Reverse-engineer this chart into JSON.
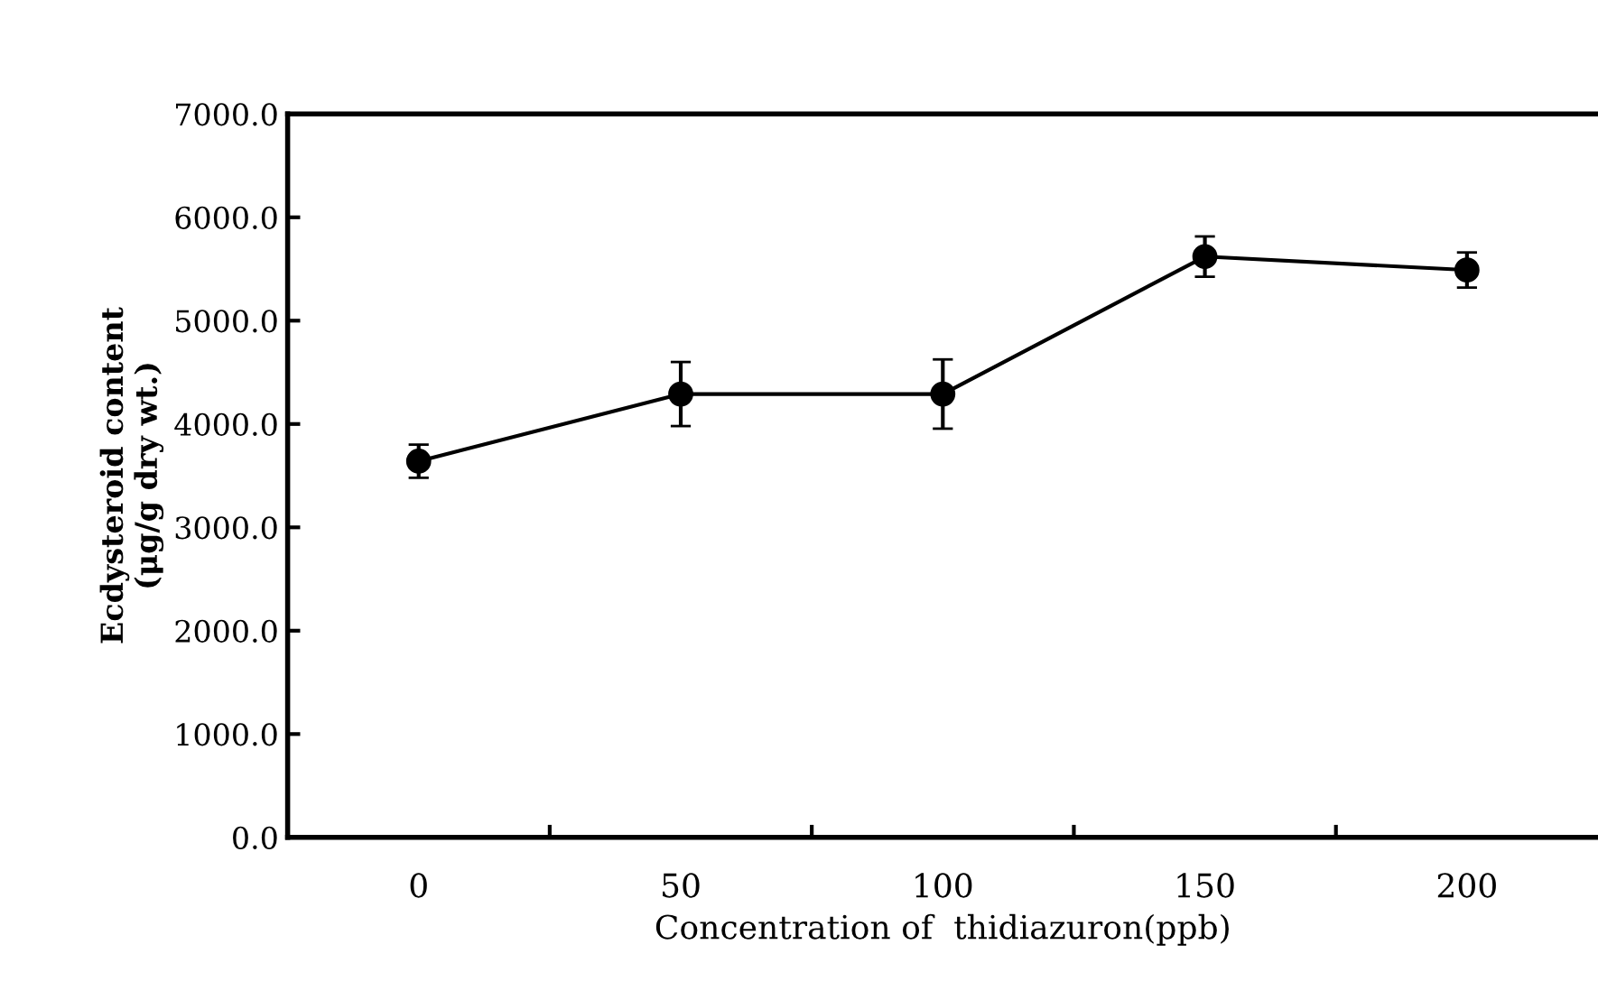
{
  "chart_data": {
    "type": "line",
    "xlabel": "Concentration of  thidiazuron(ppb)",
    "ylabel": "Ecdysteroid content\n(μg/g dry wt.)",
    "categories": [
      "0",
      "50",
      "100",
      "150",
      "200"
    ],
    "series": [
      {
        "color": "#000000",
        "values": [
          3640,
          4290,
          4290,
          5620,
          5490
        ],
        "errors": [
          160,
          310,
          335,
          195,
          170
        ]
      }
    ],
    "ylim": [
      0,
      7000
    ],
    "yticks": [
      {
        "value": 0,
        "label": "0.0"
      },
      {
        "value": 1000,
        "label": "1000.0"
      },
      {
        "value": 2000,
        "label": "2000.0"
      },
      {
        "value": 3000,
        "label": "3000.0"
      },
      {
        "value": 4000,
        "label": "4000.0"
      },
      {
        "value": 5000,
        "label": "5000.0"
      },
      {
        "value": 6000,
        "label": "6000.0"
      },
      {
        "value": 7000,
        "label": "7000.0"
      }
    ],
    "marker": "circle",
    "line_style": "solid",
    "grid": false,
    "legend": false
  }
}
